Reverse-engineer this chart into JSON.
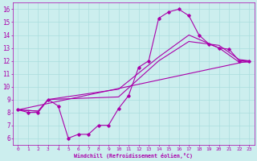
{
  "xlabel": "Windchill (Refroidissement éolien,°C)",
  "bg_color": "#cceeee",
  "line_color": "#aa00aa",
  "xlim": [
    -0.5,
    23.5
  ],
  "ylim": [
    5.5,
    16.5
  ],
  "xticks": [
    0,
    1,
    2,
    3,
    4,
    5,
    6,
    7,
    8,
    9,
    10,
    11,
    12,
    13,
    14,
    15,
    16,
    17,
    18,
    19,
    20,
    21,
    22,
    23
  ],
  "yticks": [
    6,
    7,
    8,
    9,
    10,
    11,
    12,
    13,
    14,
    15,
    16
  ],
  "grid_color": "#aadddd",
  "curve1_x": [
    0,
    1,
    2,
    3,
    4,
    5,
    6,
    7,
    8,
    9,
    10,
    11,
    12,
    13,
    14,
    15,
    16,
    17,
    18,
    19,
    20,
    21,
    22,
    23
  ],
  "curve1_y": [
    8.2,
    8.0,
    8.0,
    9.0,
    8.5,
    6.0,
    6.3,
    6.3,
    7.0,
    7.0,
    8.3,
    9.3,
    11.5,
    12.0,
    15.3,
    15.8,
    16.0,
    15.5,
    14.0,
    13.3,
    13.0,
    12.9,
    12.0,
    12.0
  ],
  "curve2_x": [
    0,
    23
  ],
  "curve2_y": [
    8.2,
    12.0
  ],
  "curve3_x": [
    0,
    2,
    3,
    10,
    14,
    17,
    20,
    22,
    23
  ],
  "curve3_y": [
    8.2,
    8.1,
    9.0,
    9.2,
    12.0,
    13.5,
    13.2,
    12.1,
    12.0
  ],
  "curve4_x": [
    0,
    2,
    3,
    10,
    14,
    17,
    20,
    22,
    23
  ],
  "curve4_y": [
    8.2,
    8.1,
    9.0,
    9.8,
    12.3,
    14.0,
    13.0,
    11.9,
    11.9
  ]
}
